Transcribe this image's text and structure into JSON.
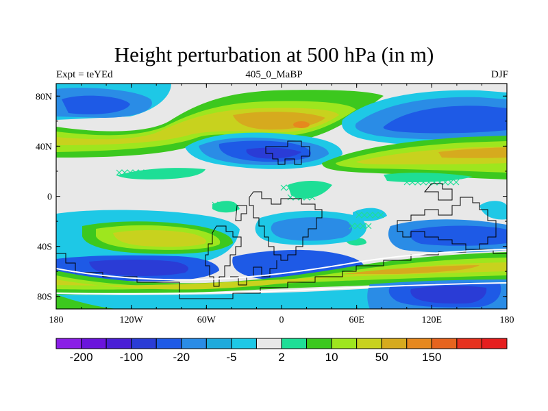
{
  "title": "Height perturbation at 500 hPa (in m)",
  "subtitle_left": "Expt = teYEd",
  "subtitle_center": "405_0_MaBP",
  "subtitle_right": "DJF",
  "colors": {
    "background_fill": "#e8e8e8",
    "coast": "#000000"
  },
  "map_data": {
    "type": "filled-contour-map",
    "variable": "Height perturbation",
    "level": "500 hPa",
    "units": "m",
    "lon_range": [
      -180,
      180
    ],
    "lat_range": [
      -90,
      90
    ],
    "x_ticks": [
      {
        "lon": -180,
        "label": "180"
      },
      {
        "lon": -120,
        "label": "120W"
      },
      {
        "lon": -60,
        "label": "60W"
      },
      {
        "lon": 0,
        "label": "0"
      },
      {
        "lon": 60,
        "label": "60E"
      },
      {
        "lon": 120,
        "label": "120E"
      },
      {
        "lon": 180,
        "label": "180"
      }
    ],
    "y_ticks": [
      {
        "lat": 80,
        "label": "80N"
      },
      {
        "lat": 40,
        "label": "40N"
      },
      {
        "lat": 0,
        "label": "0"
      },
      {
        "lat": -40,
        "label": "40S"
      },
      {
        "lat": -80,
        "label": "80S"
      }
    ]
  },
  "colorbar": {
    "colors": [
      "#8a1ee6",
      "#6a14dc",
      "#4a1ed6",
      "#2a3cd6",
      "#1e5ae6",
      "#2a8ce6",
      "#1eaadc",
      "#1ec8e6",
      "#e8e8e8",
      "#1ede96",
      "#3cc81e",
      "#9ee61e",
      "#c8d21e",
      "#d6aa1e",
      "#e6881e",
      "#e6641e",
      "#e6321e",
      "#e61e1e"
    ],
    "labels": [
      {
        "index": 1,
        "text": "-200"
      },
      {
        "index": 3,
        "text": "-100"
      },
      {
        "index": 5,
        "text": "-20"
      },
      {
        "index": 7,
        "text": "-5"
      },
      {
        "index": 9,
        "text": "2"
      },
      {
        "index": 11,
        "text": "10"
      },
      {
        "index": 13,
        "text": "50"
      },
      {
        "index": 15,
        "text": "150"
      }
    ]
  }
}
